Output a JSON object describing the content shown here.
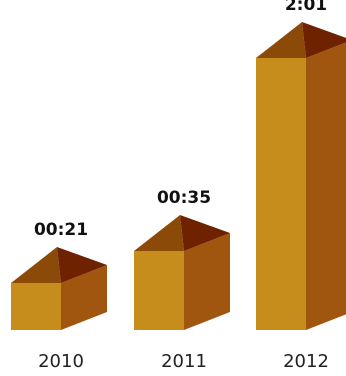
{
  "chart_data": {
    "type": "bar",
    "categories": [
      "2010",
      "2011",
      "2012"
    ],
    "values_seconds": [
      21,
      35,
      121
    ],
    "value_labels": [
      "00:21",
      "00:35",
      "2:01"
    ],
    "colors": {
      "front": "#C78D1C",
      "side": "#A0560F",
      "inner_back": "#6E2200",
      "inner_side": "#8C4A09"
    }
  }
}
